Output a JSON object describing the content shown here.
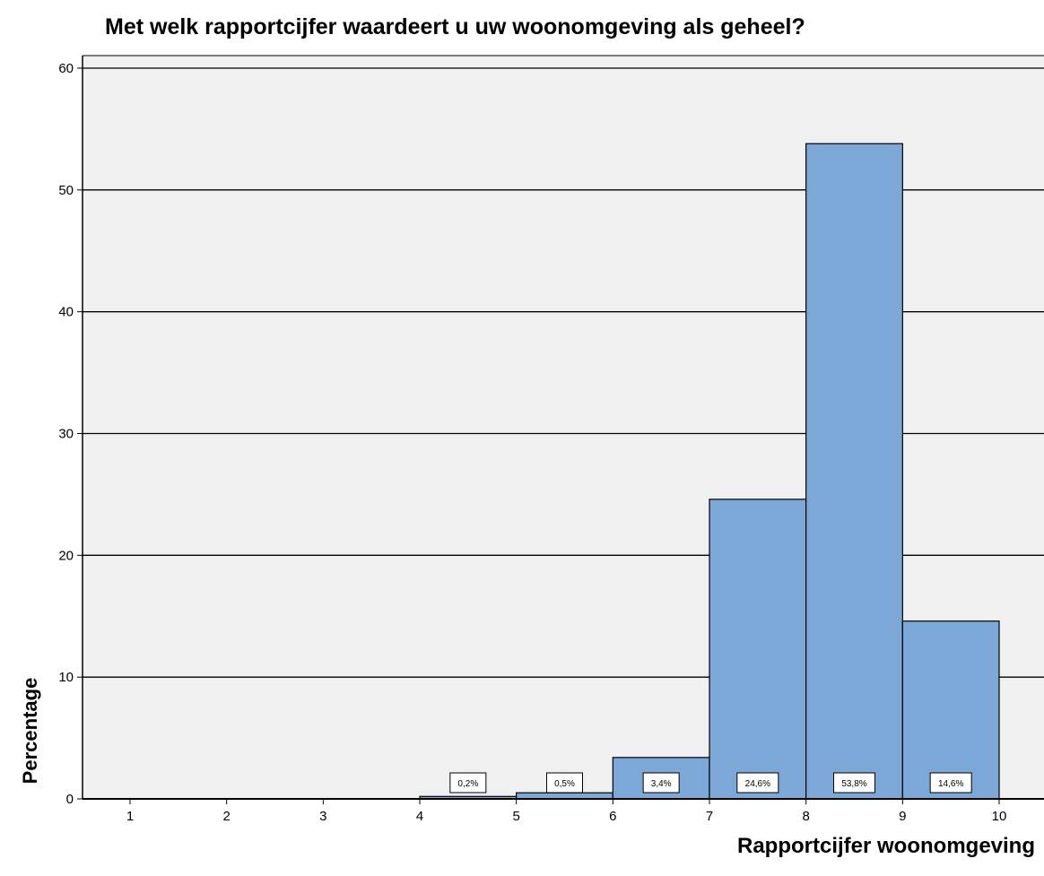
{
  "chart_data": {
    "type": "bar",
    "title": "Met welk rapportcijfer waardeert u uw woonomgeving als geheel?",
    "xlabel": "Rapportcijfer woonomgeving",
    "ylabel": "Percentage",
    "x_ticks": [
      "1",
      "2",
      "3",
      "4",
      "5",
      "6",
      "7",
      "8",
      "9",
      "10"
    ],
    "y_ticks": [
      "0",
      "10",
      "20",
      "30",
      "40",
      "50",
      "60"
    ],
    "ylim": [
      0,
      60
    ],
    "xlim": [
      0.5,
      10.5
    ],
    "grid": true,
    "bins": [
      {
        "from": 4,
        "to": 5,
        "value": 0.2,
        "label": "0,2%"
      },
      {
        "from": 5,
        "to": 6,
        "value": 0.5,
        "label": "0,5%"
      },
      {
        "from": 6,
        "to": 7,
        "value": 3.4,
        "label": "3,4%"
      },
      {
        "from": 7,
        "to": 8,
        "value": 24.6,
        "label": "24,6%"
      },
      {
        "from": 8,
        "to": 9,
        "value": 53.8,
        "label": "53,8%"
      },
      {
        "from": 9,
        "to": 10,
        "value": 14.6,
        "label": "14,6%"
      }
    ],
    "colors": {
      "bar": "#7ba8d6",
      "plot_background": "#f0f0f0",
      "grid": "#000000"
    }
  }
}
